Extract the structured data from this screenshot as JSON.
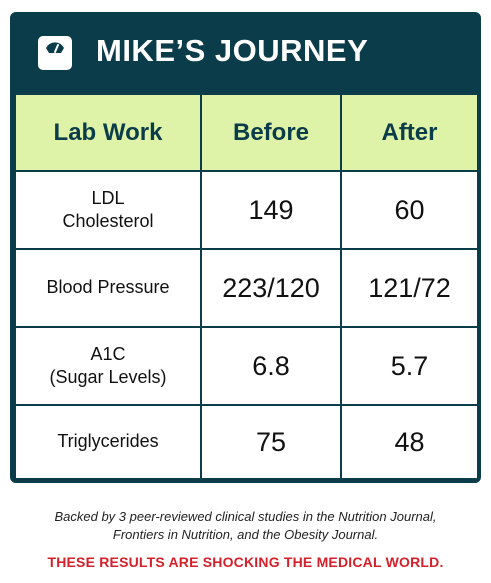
{
  "header": {
    "icon": "scale-icon",
    "title": "MIKE’S JOURNEY"
  },
  "table": {
    "columns": [
      "Lab Work",
      "Before",
      "After"
    ],
    "rows": [
      {
        "metric_line1": "LDL",
        "metric_line2": "Cholesterol",
        "before": "149",
        "after": "60"
      },
      {
        "metric_line1": "Blood Pressure",
        "metric_line2": "",
        "before": "223/120",
        "after": "121/72"
      },
      {
        "metric_line1": "A1C",
        "metric_line2": "(Sugar Levels)",
        "before": "6.8",
        "after": "5.7"
      },
      {
        "metric_line1": "Triglycerides",
        "metric_line2": "",
        "before": "75",
        "after": "48"
      }
    ]
  },
  "footer": {
    "note_line1": "Backed by 3 peer-reviewed clinical studies in the Nutrition Journal,",
    "note_line2": "Frontiers in Nutrition, and the Obesity Journal.",
    "alert": "THESE RESULTS ARE SHOCKING THE MEDICAL WORLD."
  },
  "colors": {
    "navy": "#0b3c49",
    "header_row": "#dff3a8",
    "alert_red": "#d4202a"
  }
}
